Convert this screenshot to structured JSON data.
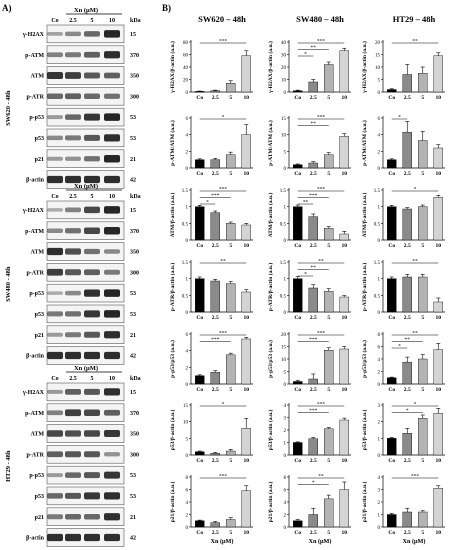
{
  "panel_a": {
    "label": "A)",
    "groups": [
      {
        "name": "SW620 - 48h",
        "header": "Xn (μM)",
        "lanes": [
          "Co",
          "2.5",
          "5",
          "10"
        ],
        "kda_label": "kDa",
        "blots": [
          {
            "protein": "γ-H2AX",
            "kda": "15",
            "intensity": [
              0.15,
              0.3,
              0.5,
              0.9
            ]
          },
          {
            "protein": "p-ATM",
            "kda": "370",
            "intensity": [
              0.35,
              0.4,
              0.55,
              0.85
            ]
          },
          {
            "protein": "ATM",
            "kda": "350",
            "intensity": [
              0.8,
              0.75,
              0.6,
              0.55
            ]
          },
          {
            "protein": "p-ATR",
            "kda": "300",
            "intensity": [
              0.5,
              0.55,
              0.5,
              0.45
            ]
          },
          {
            "protein": "p-p53",
            "kda": "53",
            "intensity": [
              0.2,
              0.5,
              0.8,
              0.9
            ]
          },
          {
            "protein": "p53",
            "kda": "53",
            "intensity": [
              0.3,
              0.4,
              0.6,
              0.85
            ]
          },
          {
            "protein": "p21",
            "kda": "21",
            "intensity": [
              0.2,
              0.25,
              0.45,
              0.9
            ]
          },
          {
            "protein": "β-actin",
            "kda": "42",
            "intensity": [
              0.85,
              0.85,
              0.85,
              0.85
            ]
          }
        ]
      },
      {
        "name": "SW480 - 48h",
        "header": "Xn (μM)",
        "lanes": [
          "Co",
          "2.5",
          "5",
          "10"
        ],
        "kda_label": "kDa",
        "blots": [
          {
            "protein": "γ-H2AX",
            "kda": "15",
            "intensity": [
              0.1,
              0.35,
              0.7,
              0.9
            ]
          },
          {
            "protein": "p-ATM",
            "kda": "370",
            "intensity": [
              0.3,
              0.45,
              0.7,
              0.9
            ]
          },
          {
            "protein": "ATM",
            "kda": "350",
            "intensity": [
              0.85,
              0.65,
              0.45,
              0.3
            ]
          },
          {
            "protein": "p-ATR",
            "kda": "300",
            "intensity": [
              0.75,
              0.6,
              0.55,
              0.4
            ]
          },
          {
            "protein": "p-p53",
            "kda": "53",
            "intensity": [
              0.1,
              0.3,
              0.85,
              0.9
            ]
          },
          {
            "protein": "p53",
            "kda": "53",
            "intensity": [
              0.4,
              0.45,
              0.8,
              0.9
            ]
          },
          {
            "protein": "p21",
            "kda": "21",
            "intensity": [
              0.2,
              0.4,
              0.6,
              0.85
            ]
          },
          {
            "protein": "β-actin",
            "kda": "42",
            "intensity": [
              0.85,
              0.85,
              0.85,
              0.85
            ]
          }
        ]
      },
      {
        "name": "HT29 - 48h",
        "header": "Xn (μM)",
        "lanes": [
          "Co",
          "2.5",
          "5",
          "10"
        ],
        "kda_label": "kDa",
        "blots": [
          {
            "protein": "γ-H2AX",
            "kda": "15",
            "intensity": [
              0.2,
              0.55,
              0.6,
              0.85
            ]
          },
          {
            "protein": "p-ATM",
            "kda": "370",
            "intensity": [
              0.35,
              0.75,
              0.7,
              0.55
            ]
          },
          {
            "protein": "ATM",
            "kda": "350",
            "intensity": [
              0.7,
              0.65,
              0.7,
              0.8
            ]
          },
          {
            "protein": "p-ATR",
            "kda": "300",
            "intensity": [
              0.55,
              0.6,
              0.6,
              0.25
            ]
          },
          {
            "protein": "p-p53",
            "kda": "53",
            "intensity": [
              0.2,
              0.5,
              0.6,
              0.8
            ]
          },
          {
            "protein": "p53",
            "kda": "53",
            "intensity": [
              0.5,
              0.6,
              0.8,
              0.85
            ]
          },
          {
            "protein": "p21",
            "kda": "21",
            "intensity": [
              0.4,
              0.5,
              0.5,
              0.85
            ]
          },
          {
            "protein": "β-actin",
            "kda": "42",
            "intensity": [
              0.85,
              0.85,
              0.85,
              0.85
            ]
          }
        ]
      }
    ]
  },
  "chart_data": {
    "type": "bar",
    "panel_label": "B)",
    "columns": [
      "SW620 – 48h",
      "SW480 – 48h",
      "HT29 – 48h"
    ],
    "categories": [
      "Co",
      "2.5",
      "5",
      "10"
    ],
    "xlabel": "Xn (μM)",
    "bar_colors": [
      "#000000",
      "#8a8a8a",
      "#b3b3b3",
      "#d4d4d4"
    ],
    "sig_marks": [
      "*",
      "**",
      "***"
    ],
    "rows": [
      {
        "ylabel": "γ-H2AX/β-actin (a.u.)",
        "charts": [
          {
            "ylim": [
              0,
              80
            ],
            "ticks": [
              0,
              20,
              40,
              60,
              80
            ],
            "values": [
              1,
              2,
              14,
              58
            ],
            "errors": [
              0.5,
              1,
              4,
              8
            ],
            "sig": [
              [
                0,
                3,
                "***"
              ]
            ]
          },
          {
            "ylim": [
              0,
              40
            ],
            "ticks": [
              0,
              10,
              20,
              30,
              40
            ],
            "values": [
              1,
              8,
              22,
              33
            ],
            "errors": [
              0.5,
              2,
              2,
              2
            ],
            "sig": [
              [
                0,
                3,
                "***"
              ],
              [
                0,
                2,
                "**"
              ],
              [
                0,
                1,
                "*"
              ]
            ]
          },
          {
            "ylim": [
              0,
              20
            ],
            "ticks": [
              0,
              5,
              10,
              15,
              20
            ],
            "values": [
              1,
              7,
              7.5,
              14.5
            ],
            "errors": [
              0.3,
              4,
              2.5,
              1.2
            ],
            "sig": [
              [
                0,
                3,
                "**"
              ]
            ]
          }
        ]
      },
      {
        "ylabel": "p-ATM/ATM (a.u.)",
        "charts": [
          {
            "ylim": [
              0,
              6
            ],
            "ticks": [
              0,
              2,
              4,
              6
            ],
            "values": [
              1,
              1,
              1.6,
              4
            ],
            "errors": [
              0.1,
              0.15,
              0.3,
              1.2
            ],
            "sig": [
              [
                0,
                3,
                "*"
              ]
            ]
          },
          {
            "ylim": [
              0,
              15
            ],
            "ticks": [
              0,
              5,
              10,
              15
            ],
            "values": [
              1,
              1.5,
              4,
              9.5
            ],
            "errors": [
              0.2,
              0.4,
              0.6,
              0.8
            ],
            "sig": [
              [
                0,
                3,
                "***"
              ],
              [
                0,
                2,
                "**"
              ]
            ]
          },
          {
            "ylim": [
              0,
              6
            ],
            "ticks": [
              0,
              2,
              4,
              6
            ],
            "values": [
              1,
              4.3,
              3.3,
              2.4
            ],
            "errors": [
              0.1,
              1.3,
              1.1,
              0.4
            ],
            "sig": [
              [
                0,
                1,
                "*"
              ]
            ]
          }
        ]
      },
      {
        "ylabel": "ATM/β-actin (a.u.)",
        "charts": [
          {
            "ylim": [
              0,
              1.5
            ],
            "ticks": [
              0,
              0.5,
              1.0,
              1.5
            ],
            "values": [
              1,
              0.82,
              0.5,
              0.45
            ],
            "errors": [
              0.04,
              0.05,
              0.04,
              0.05
            ],
            "sig": [
              [
                0,
                3,
                "***"
              ],
              [
                0,
                2,
                "***"
              ],
              [
                0,
                1,
                "*"
              ]
            ]
          },
          {
            "ylim": [
              0,
              1.5
            ],
            "ticks": [
              0,
              0.5,
              1.0,
              1.5
            ],
            "values": [
              1,
              0.7,
              0.35,
              0.18
            ],
            "errors": [
              0.05,
              0.08,
              0.05,
              0.08
            ],
            "sig": [
              [
                0,
                3,
                "***"
              ],
              [
                0,
                2,
                "***"
              ],
              [
                0,
                1,
                "**"
              ]
            ]
          },
          {
            "ylim": [
              0,
              1.5
            ],
            "ticks": [
              0,
              0.5,
              1.0,
              1.5
            ],
            "values": [
              1,
              0.93,
              1.0,
              1.28
            ],
            "errors": [
              0.04,
              0.04,
              0.05,
              0.06
            ],
            "sig": [
              [
                0,
                3,
                "*"
              ]
            ]
          }
        ]
      },
      {
        "ylabel": "p-ATR/β-actin (a.u.)",
        "charts": [
          {
            "ylim": [
              0,
              1.5
            ],
            "ticks": [
              0,
              0.5,
              1.0,
              1.5
            ],
            "values": [
              1,
              0.93,
              0.85,
              0.6
            ],
            "errors": [
              0.05,
              0.05,
              0.06,
              0.07
            ],
            "sig": [
              [
                0,
                3,
                "**"
              ]
            ]
          },
          {
            "ylim": [
              0,
              1.5
            ],
            "ticks": [
              0,
              0.5,
              1.0,
              1.5
            ],
            "values": [
              1,
              0.72,
              0.62,
              0.45
            ],
            "errors": [
              0.06,
              0.1,
              0.08,
              0.04
            ],
            "sig": [
              [
                0,
                3,
                "**"
              ],
              [
                0,
                2,
                "**"
              ],
              [
                0,
                1,
                "*"
              ]
            ]
          },
          {
            "ylim": [
              0,
              1.5
            ],
            "ticks": [
              0,
              0.5,
              1.0,
              1.5
            ],
            "values": [
              1,
              1.05,
              1.05,
              0.3
            ],
            "errors": [
              0.05,
              0.08,
              0.08,
              0.12
            ],
            "sig": [
              [
                0,
                3,
                "**"
              ]
            ]
          }
        ]
      },
      {
        "ylabel": "p-p53/p53 (a.u.)",
        "charts": [
          {
            "ylim": [
              0,
              6
            ],
            "ticks": [
              0,
              2,
              4,
              6
            ],
            "values": [
              1,
              1.4,
              3.5,
              5.4
            ],
            "errors": [
              0.1,
              0.2,
              0.2,
              0.2
            ],
            "sig": [
              [
                0,
                3,
                "***"
              ],
              [
                0,
                2,
                "***"
              ]
            ]
          },
          {
            "ylim": [
              0,
              20
            ],
            "ticks": [
              0,
              5,
              10,
              15,
              20
            ],
            "values": [
              1,
              2,
              13.5,
              14
            ],
            "errors": [
              0.5,
              2,
              1,
              1
            ],
            "sig": [
              [
                0,
                3,
                "***"
              ],
              [
                0,
                2,
                "***"
              ]
            ]
          },
          {
            "ylim": [
              0,
              8
            ],
            "ticks": [
              0,
              2,
              4,
              6,
              8
            ],
            "values": [
              1,
              3.5,
              4,
              5.5
            ],
            "errors": [
              0.1,
              0.8,
              0.7,
              1.0
            ],
            "sig": [
              [
                0,
                3,
                "**"
              ],
              [
                0,
                2,
                "**"
              ],
              [
                0,
                1,
                "*"
              ]
            ]
          }
        ]
      },
      {
        "ylabel": "p53/β-actin (a.u.)",
        "charts": [
          {
            "ylim": [
              0,
              15
            ],
            "ticks": [
              0,
              5,
              10,
              15
            ],
            "values": [
              1,
              0.5,
              1.2,
              8
            ],
            "errors": [
              0.2,
              0.3,
              0.5,
              3
            ],
            "sig": [
              [
                0,
                3,
                "*"
              ]
            ]
          },
          {
            "ylim": [
              0,
              4
            ],
            "ticks": [
              0,
              1,
              2,
              3,
              4
            ],
            "values": [
              1,
              1.3,
              2.1,
              2.8
            ],
            "errors": [
              0.05,
              0.1,
              0.1,
              0.15
            ],
            "sig": [
              [
                0,
                3,
                "***"
              ],
              [
                0,
                2,
                "***"
              ]
            ]
          },
          {
            "ylim": [
              0,
              3
            ],
            "ticks": [
              0,
              1,
              2,
              3
            ],
            "values": [
              1,
              1.3,
              2.2,
              2.5
            ],
            "errors": [
              0.05,
              0.3,
              0.2,
              0.3
            ],
            "sig": [
              [
                0,
                3,
                "*"
              ],
              [
                0,
                2,
                "*"
              ]
            ]
          }
        ]
      },
      {
        "ylabel": "p21/β-actin (a.u.)",
        "charts": [
          {
            "ylim": [
              0,
              8
            ],
            "ticks": [
              0,
              2,
              4,
              6,
              8
            ],
            "values": [
              1,
              0.7,
              1.2,
              5.8
            ],
            "errors": [
              0.1,
              0.2,
              0.3,
              0.8
            ],
            "sig": [
              [
                0,
                3,
                "***"
              ]
            ]
          },
          {
            "ylim": [
              0,
              8
            ],
            "ticks": [
              0,
              2,
              4,
              6,
              8
            ],
            "values": [
              1,
              2,
              4.5,
              6
            ],
            "errors": [
              0.2,
              1,
              0.6,
              1.2
            ],
            "sig": [
              [
                0,
                3,
                "**"
              ],
              [
                0,
                2,
                "*"
              ]
            ]
          },
          {
            "ylim": [
              0,
              4
            ],
            "ticks": [
              0,
              1,
              2,
              3,
              4
            ],
            "values": [
              1,
              1.2,
              1.2,
              3.1
            ],
            "errors": [
              0.1,
              0.3,
              0.1,
              0.2
            ],
            "sig": [
              [
                0,
                3,
                "***"
              ]
            ]
          }
        ]
      }
    ]
  }
}
